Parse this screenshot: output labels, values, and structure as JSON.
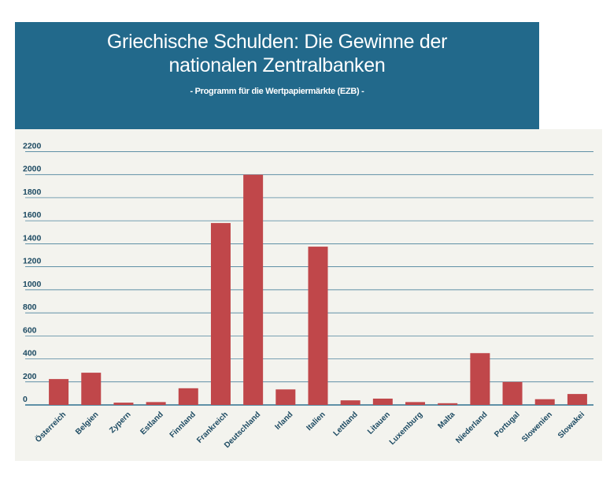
{
  "header": {
    "title": "Griechische Schulden: Die Gewinne der nationalen Zentralbanken",
    "subtitle": "- Programm für die Wertpapiermärkte (EZB) -"
  },
  "colors": {
    "header_bg": "#22698b",
    "panel_bg": "#f3f3ee",
    "bar": "#c0474a",
    "grid": "#2e6f8e",
    "axis_text": "#1c4a62"
  },
  "chart_data": {
    "type": "bar",
    "categories": [
      "Österreich",
      "Belgien",
      "Zypern",
      "Estland",
      "Finnland",
      "Frankreich",
      "Deutschland",
      "Irland",
      "Italien",
      "Lettland",
      "Litauen",
      "Luxemburg",
      "Malta",
      "Niederland",
      "Portugal",
      "Slowenien",
      "Slowakei"
    ],
    "series": [
      {
        "values": [
          225,
          280,
          20,
          25,
          145,
          1580,
          2000,
          135,
          1375,
          40,
          55,
          25,
          15,
          450,
          200,
          50,
          95
        ]
      }
    ],
    "yticks": [
      0,
      200,
      400,
      600,
      800,
      1000,
      1200,
      1400,
      1600,
      1800,
      2000,
      2200
    ],
    "ylim": [
      0,
      2200
    ],
    "grid": true,
    "legend": "none"
  }
}
